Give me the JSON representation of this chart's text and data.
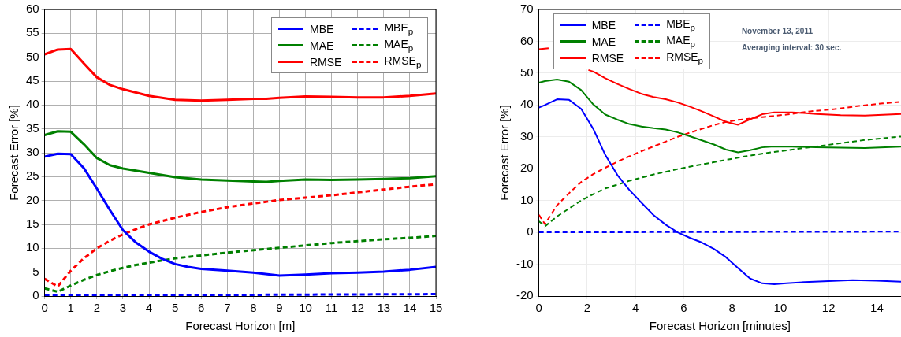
{
  "chart_data": [
    {
      "type": "line",
      "xlabel": "Forecast Horizon [m]",
      "ylabel": "Forecast Error [%]",
      "xlim": [
        0,
        15
      ],
      "ylim": [
        0,
        60
      ],
      "xticks": [
        0,
        1,
        2,
        3,
        4,
        5,
        6,
        7,
        8,
        9,
        10,
        11,
        12,
        13,
        14,
        15
      ],
      "yticks": [
        0,
        5,
        10,
        15,
        20,
        25,
        30,
        35,
        40,
        45,
        50,
        55,
        60
      ],
      "grid": true,
      "legend": "top right",
      "series": [
        {
          "name": "MBE",
          "color": "#0000ff",
          "line_style": "solid",
          "x": [
            0,
            0.5,
            1,
            1.5,
            2,
            2.5,
            3,
            3.5,
            4,
            4.5,
            5,
            5.5,
            6,
            7,
            8,
            9,
            10,
            11,
            12,
            13,
            14,
            15
          ],
          "values": [
            29.2,
            29.8,
            29.7,
            26.8,
            22.5,
            18,
            13.8,
            11.2,
            9.3,
            7.8,
            6.7,
            6.1,
            5.7,
            5.3,
            4.9,
            4.3,
            4.5,
            4.8,
            4.9,
            5.1,
            5.5,
            6.1
          ]
        },
        {
          "name": "MAE",
          "color": "#008000",
          "line_style": "solid",
          "x": [
            0,
            0.5,
            1,
            1.5,
            2,
            2.5,
            3,
            4,
            5,
            6,
            7,
            8,
            8.5,
            9,
            10,
            11,
            12,
            13,
            14,
            15
          ],
          "values": [
            33.7,
            34.5,
            34.4,
            31.8,
            28.9,
            27.4,
            26.7,
            25.8,
            24.9,
            24.4,
            24.2,
            24.0,
            23.9,
            24.1,
            24.4,
            24.3,
            24.4,
            24.5,
            24.7,
            25.1
          ]
        },
        {
          "name": "RMSE",
          "color": "#ff0000",
          "line_style": "solid",
          "x": [
            0,
            0.5,
            1,
            1.5,
            2,
            2.5,
            3,
            4,
            5,
            6,
            7,
            8,
            8.5,
            9,
            10,
            11,
            12,
            13,
            14,
            15
          ],
          "values": [
            50.6,
            51.6,
            51.7,
            48.7,
            45.8,
            44.2,
            43.3,
            41.9,
            41.1,
            40.9,
            41.1,
            41.3,
            41.3,
            41.5,
            41.8,
            41.7,
            41.6,
            41.6,
            41.9,
            42.4
          ]
        },
        {
          "name": "MBE$_{p}$",
          "color": "#0000ff",
          "line_style": "dashed",
          "x": [
            0,
            5,
            10,
            15
          ],
          "values": [
            0.1,
            0.2,
            0.3,
            0.4
          ]
        },
        {
          "name": "MAE$_{p}$",
          "color": "#008000",
          "line_style": "dashed",
          "x": [
            0,
            0.5,
            1,
            1.5,
            2,
            2.5,
            3,
            3.5,
            4,
            5,
            6,
            7,
            8,
            9,
            10,
            11,
            12,
            13,
            14,
            15
          ],
          "values": [
            1.6,
            0.9,
            2.2,
            3.4,
            4.4,
            5.2,
            5.9,
            6.5,
            7.0,
            7.9,
            8.5,
            9.1,
            9.6,
            10.1,
            10.6,
            11.1,
            11.5,
            11.9,
            12.2,
            12.6
          ]
        },
        {
          "name": "RMSE$_{p}$",
          "color": "#ff0000",
          "line_style": "dashed",
          "x": [
            0,
            0.5,
            1,
            1.5,
            2,
            2.5,
            3,
            3.5,
            4,
            5,
            6,
            7,
            8,
            9,
            10,
            11,
            12,
            13,
            14,
            15
          ],
          "values": [
            3.6,
            2.0,
            5.3,
            7.9,
            10.0,
            11.6,
            12.9,
            14.0,
            15.0,
            16.4,
            17.6,
            18.6,
            19.4,
            20.1,
            20.6,
            21.1,
            21.7,
            22.3,
            22.9,
            23.4
          ]
        }
      ]
    },
    {
      "type": "line",
      "xlabel": "Forecast Horizon [minutes]",
      "ylabel": "Forecast Error [%]",
      "xlim": [
        0,
        15
      ],
      "ylim": [
        -20,
        70
      ],
      "xticks": [
        0,
        2,
        4,
        6,
        8,
        10,
        12,
        14
      ],
      "yticks": [
        -20,
        -10,
        0,
        10,
        20,
        30,
        40,
        50,
        60,
        70
      ],
      "grid": true,
      "legend": "top left",
      "annotations": [
        "November 13, 2011",
        "Averaging interval: 30 sec."
      ],
      "series": [
        {
          "name": "MBE",
          "color": "#0000ff",
          "line_style": "solid",
          "x": [
            0,
            0.25,
            0.75,
            1.25,
            1.75,
            2.25,
            2.75,
            3.25,
            3.75,
            4.25,
            4.75,
            5.25,
            5.75,
            6.25,
            6.75,
            7.25,
            7.75,
            8.25,
            8.75,
            9.25,
            9.75,
            10.25,
            11,
            12,
            13,
            14,
            15
          ],
          "values": [
            39.2,
            40,
            41.8,
            41.6,
            38.8,
            32.5,
            24.3,
            18,
            13.3,
            9.3,
            5.4,
            2.4,
            0,
            -1.7,
            -3.2,
            -5.2,
            -7.8,
            -11.2,
            -14.5,
            -16.0,
            -16.3,
            -16.0,
            -15.6,
            -15.3,
            -15.0,
            -15.2,
            -15.5
          ]
        },
        {
          "name": "MAE",
          "color": "#008000",
          "line_style": "solid",
          "x": [
            0,
            0.25,
            0.75,
            1.25,
            1.75,
            2.25,
            2.75,
            3.25,
            3.75,
            4.25,
            4.75,
            5.25,
            5.75,
            6.25,
            6.75,
            7.25,
            7.75,
            8.25,
            8.75,
            9.25,
            9.75,
            10.5,
            11.5,
            12.5,
            13.5,
            15
          ],
          "values": [
            47.0,
            47.5,
            48.0,
            47.3,
            44.7,
            40.2,
            37.0,
            35.4,
            34.0,
            33.2,
            32.7,
            32.3,
            31.4,
            30.2,
            28.9,
            27.6,
            26.0,
            25.1,
            25.8,
            26.7,
            27.0,
            26.9,
            26.7,
            26.6,
            26.5,
            26.9
          ]
        },
        {
          "name": "RMSE",
          "color": "#ff0000",
          "line_style": "solid",
          "x": [
            0,
            0.4,
            1,
            2.05,
            2.25,
            2.75,
            3.25,
            3.75,
            4.25,
            4.75,
            5.25,
            5.75,
            6.25,
            6.75,
            7.25,
            7.75,
            8.25,
            8.75,
            9.25,
            9.75,
            10.5,
            11.5,
            12.5,
            13.5,
            15
          ],
          "values": [
            57.5,
            57.8,
            null,
            51.0,
            50.5,
            48.4,
            46.6,
            45.0,
            43.5,
            42.5,
            41.8,
            40.8,
            39.5,
            38.0,
            36.4,
            34.7,
            33.8,
            35.5,
            37.1,
            37.7,
            37.7,
            37.2,
            36.8,
            36.7,
            37.2
          ]
        },
        {
          "name": "MBE$_{p}$",
          "color": "#0000ff",
          "line_style": "dashed",
          "x": [
            0,
            15
          ],
          "values": [
            0.0,
            0.2
          ]
        },
        {
          "name": "MAE$_{p}$",
          "color": "#008000",
          "line_style": "dashed",
          "x": [
            0,
            0.25,
            0.75,
            1.25,
            1.75,
            2.25,
            2.75,
            3.25,
            3.75,
            4.25,
            4.75,
            5.25,
            5.75,
            6.5,
            7.5,
            8.5,
            9.5,
            10.5,
            11.5,
            12.5,
            13.5,
            15
          ],
          "values": [
            3.5,
            1.9,
            5.0,
            7.5,
            10.0,
            12.0,
            13.8,
            15.0,
            16.2,
            17.2,
            18.2,
            19.0,
            19.9,
            21.0,
            22.4,
            23.8,
            25.0,
            26.0,
            27.0,
            28.0,
            29.0,
            30.1
          ]
        },
        {
          "name": "RMSE$_{p}$",
          "color": "#ff0000",
          "line_style": "dashed",
          "x": [
            0,
            0.25,
            0.75,
            1.25,
            1.75,
            2.25,
            2.75,
            3.25,
            3.75,
            4.25,
            4.75,
            5.25,
            5.75,
            6.25,
            6.75,
            7.25,
            7.75,
            8.25,
            9.25,
            10.25,
            11.25,
            12.25,
            13.25,
            14.25,
            15
          ],
          "values": [
            5.5,
            2.6,
            8.5,
            12.3,
            15.8,
            18.3,
            20.3,
            22.2,
            23.9,
            25.5,
            27.0,
            28.5,
            30.0,
            31.3,
            32.5,
            33.7,
            34.7,
            35.3,
            36.2,
            37.0,
            38.0,
            38.7,
            39.7,
            40.5,
            41.0
          ]
        }
      ]
    }
  ]
}
